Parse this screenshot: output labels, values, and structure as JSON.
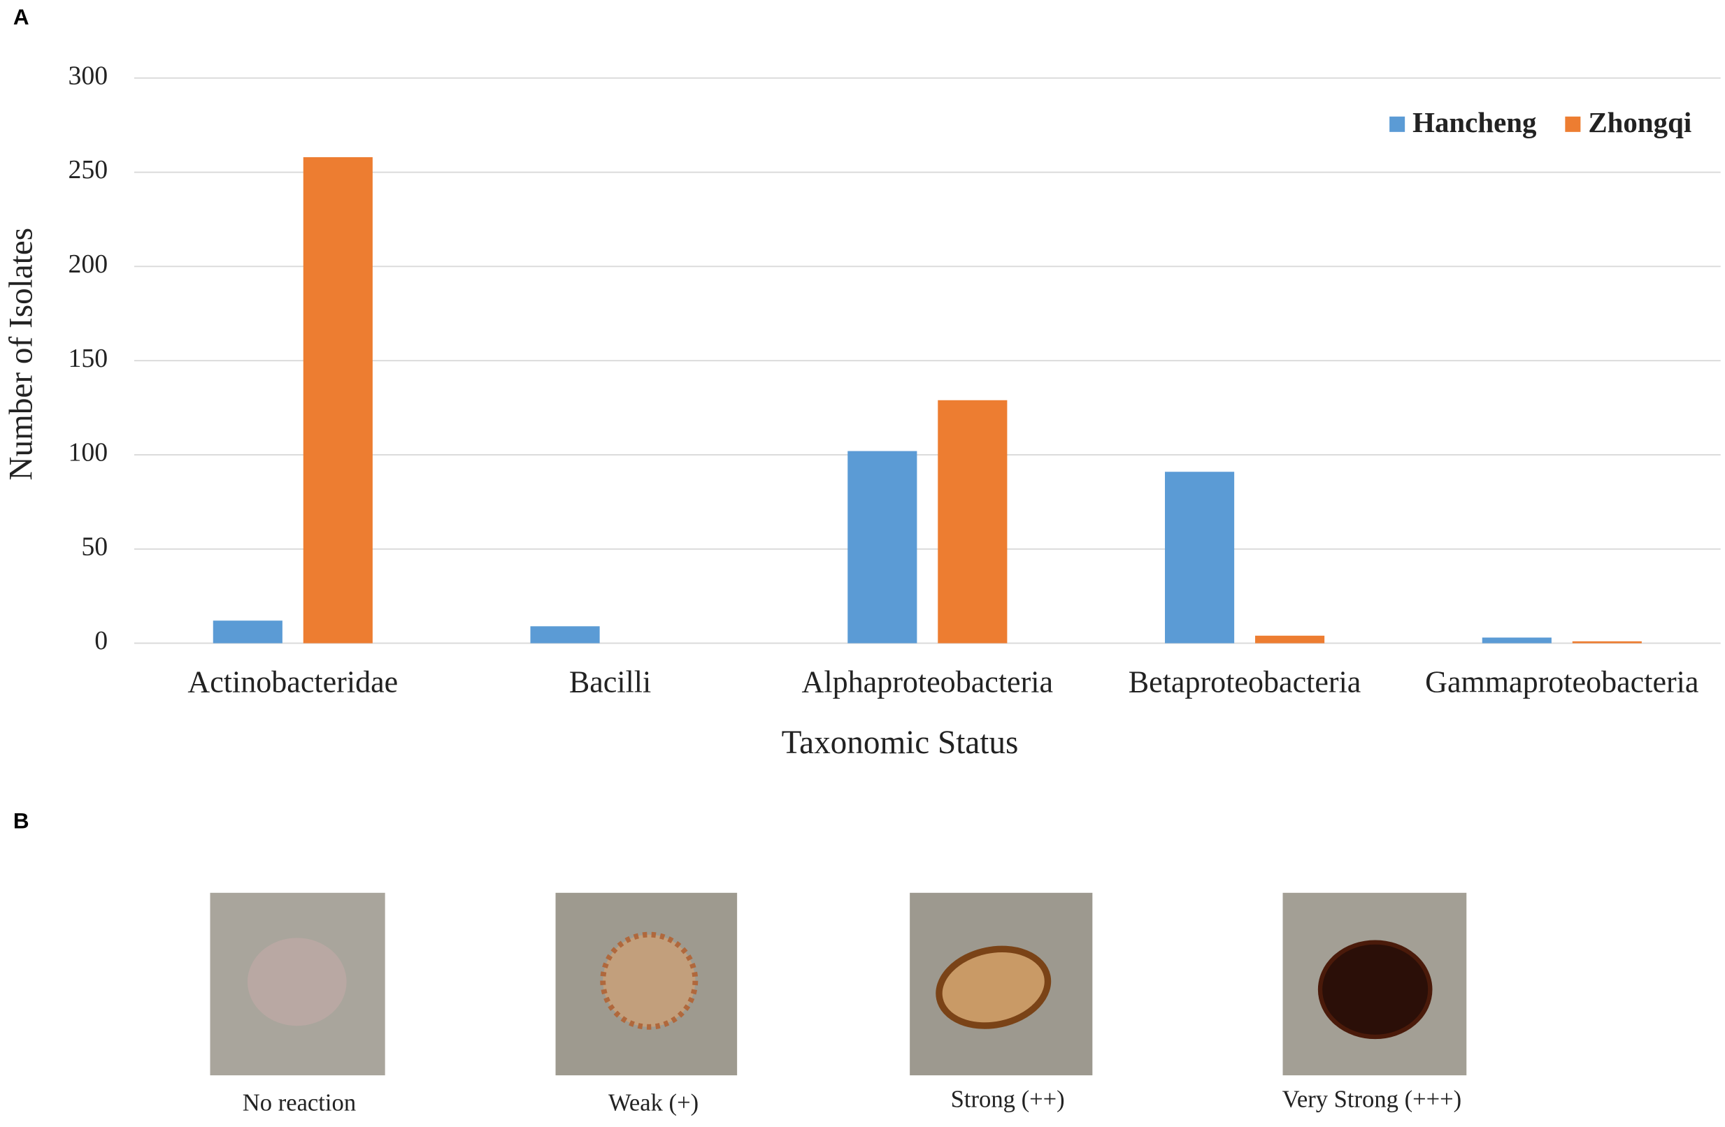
{
  "panels": [
    "A",
    "B"
  ],
  "chart_data": {
    "type": "bar",
    "xlabel": "Taxonomic Status",
    "ylabel": "Number of Isolates",
    "categories": [
      "Actinobacteridae",
      "Bacilli",
      "Alphaproteobacteria",
      "Betaproteobacteria",
      "Gammaproteobacteria"
    ],
    "series": [
      {
        "name": "Hancheng",
        "color": "#5b9bd5",
        "values": [
          12,
          9,
          102,
          91,
          3
        ]
      },
      {
        "name": "Zhongqi",
        "color": "#ed7d31",
        "values": [
          258,
          0,
          129,
          4,
          1
        ]
      }
    ],
    "ylim": [
      0,
      300
    ],
    "yticks": [
      0,
      50,
      100,
      150,
      200,
      250,
      300
    ],
    "grid": true,
    "legend": "top-right"
  },
  "reactions": [
    "No reaction",
    "Weak (+)",
    "Strong (++)",
    "Very Strong (+++)"
  ]
}
